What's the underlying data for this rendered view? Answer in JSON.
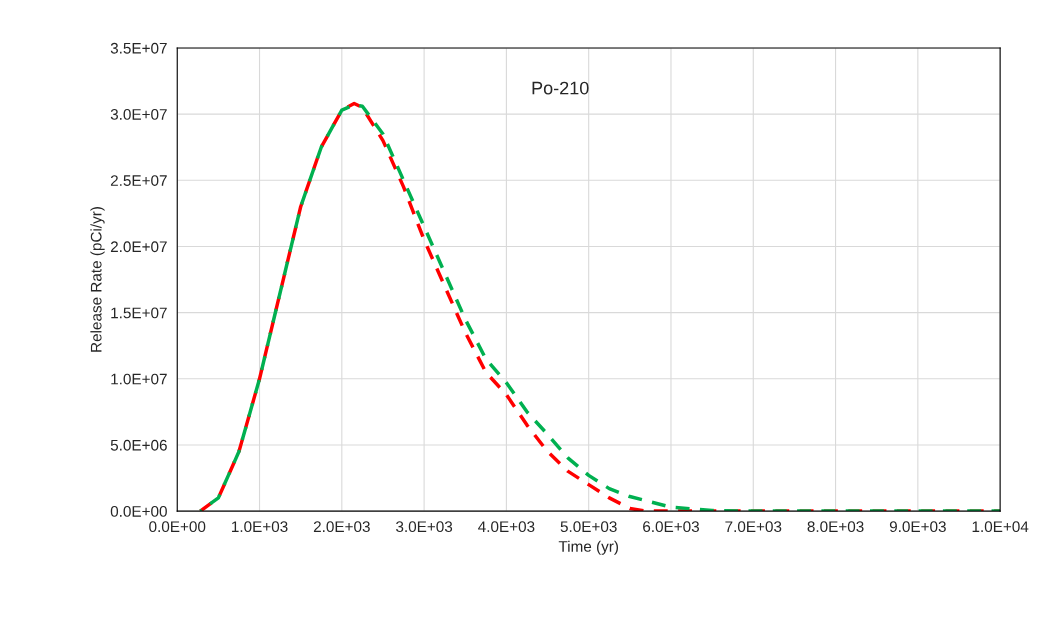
{
  "chart_data": {
    "type": "line",
    "xlabel": "Time (yr)",
    "ylabel": "Release Rate (pCi/yr)",
    "annotations": [
      "Po-210"
    ],
    "xlim": [
      0,
      10000
    ],
    "ylim": [
      0,
      35000000
    ],
    "xticks": [
      {
        "value": 0,
        "label": "0.0E+00"
      },
      {
        "value": 1000,
        "label": "1.0E+03"
      },
      {
        "value": 2000,
        "label": "2.0E+03"
      },
      {
        "value": 3000,
        "label": "3.0E+03"
      },
      {
        "value": 4000,
        "label": "4.0E+03"
      },
      {
        "value": 5000,
        "label": "5.0E+03"
      },
      {
        "value": 6000,
        "label": "6.0E+03"
      },
      {
        "value": 7000,
        "label": "7.0E+03"
      },
      {
        "value": 8000,
        "label": "8.0E+03"
      },
      {
        "value": 9000,
        "label": "9.0E+03"
      },
      {
        "value": 10000,
        "label": "1.0E+04"
      }
    ],
    "yticks": [
      {
        "value": 0,
        "label": "0.0E+00"
      },
      {
        "value": 5000000,
        "label": "5.0E+06"
      },
      {
        "value": 10000000,
        "label": "1.0E+07"
      },
      {
        "value": 15000000,
        "label": "1.5E+07"
      },
      {
        "value": 20000000,
        "label": "2.0E+07"
      },
      {
        "value": 25000000,
        "label": "2.5E+07"
      },
      {
        "value": 30000000,
        "label": "3.0E+07"
      },
      {
        "value": 35000000,
        "label": "3.5E+07"
      }
    ],
    "grid": true,
    "line_style": "dashed",
    "marker": "none",
    "series": [
      {
        "color": "#ff0000",
        "x": [
          280,
          500,
          750,
          1000,
          1250,
          1500,
          1750,
          2000,
          2150,
          2250,
          2500,
          2750,
          3000,
          3250,
          3500,
          3750,
          4000,
          4250,
          4500,
          4750,
          5000,
          5250,
          5500,
          5700,
          6000,
          7000,
          8000,
          9000,
          10000
        ],
        "values": [
          0,
          1000000,
          4500000,
          10000000,
          16500000,
          23000000,
          27500000,
          30300000,
          30800000,
          30500000,
          28000000,
          24500000,
          20500000,
          17000000,
          13500000,
          10500000,
          8800000,
          6500000,
          4500000,
          3000000,
          2000000,
          1000000,
          200000,
          0,
          0,
          0,
          0,
          0,
          0
        ]
      },
      {
        "color": "#00b050",
        "x": [
          280,
          500,
          750,
          1000,
          1250,
          1500,
          1750,
          2000,
          2150,
          2250,
          2500,
          2750,
          3000,
          3250,
          3500,
          3750,
          4000,
          4250,
          4500,
          4750,
          5000,
          5250,
          5500,
          6000,
          6500,
          7000,
          8000,
          9000,
          10000
        ],
        "values": [
          0,
          1000000,
          4500000,
          10000000,
          16500000,
          23000000,
          27500000,
          30300000,
          30700000,
          30600000,
          28500000,
          25000000,
          21500000,
          18000000,
          14500000,
          11500000,
          9700000,
          7500000,
          5800000,
          4000000,
          2700000,
          1700000,
          1100000,
          300000,
          50000,
          0,
          0,
          0,
          0
        ]
      }
    ]
  }
}
